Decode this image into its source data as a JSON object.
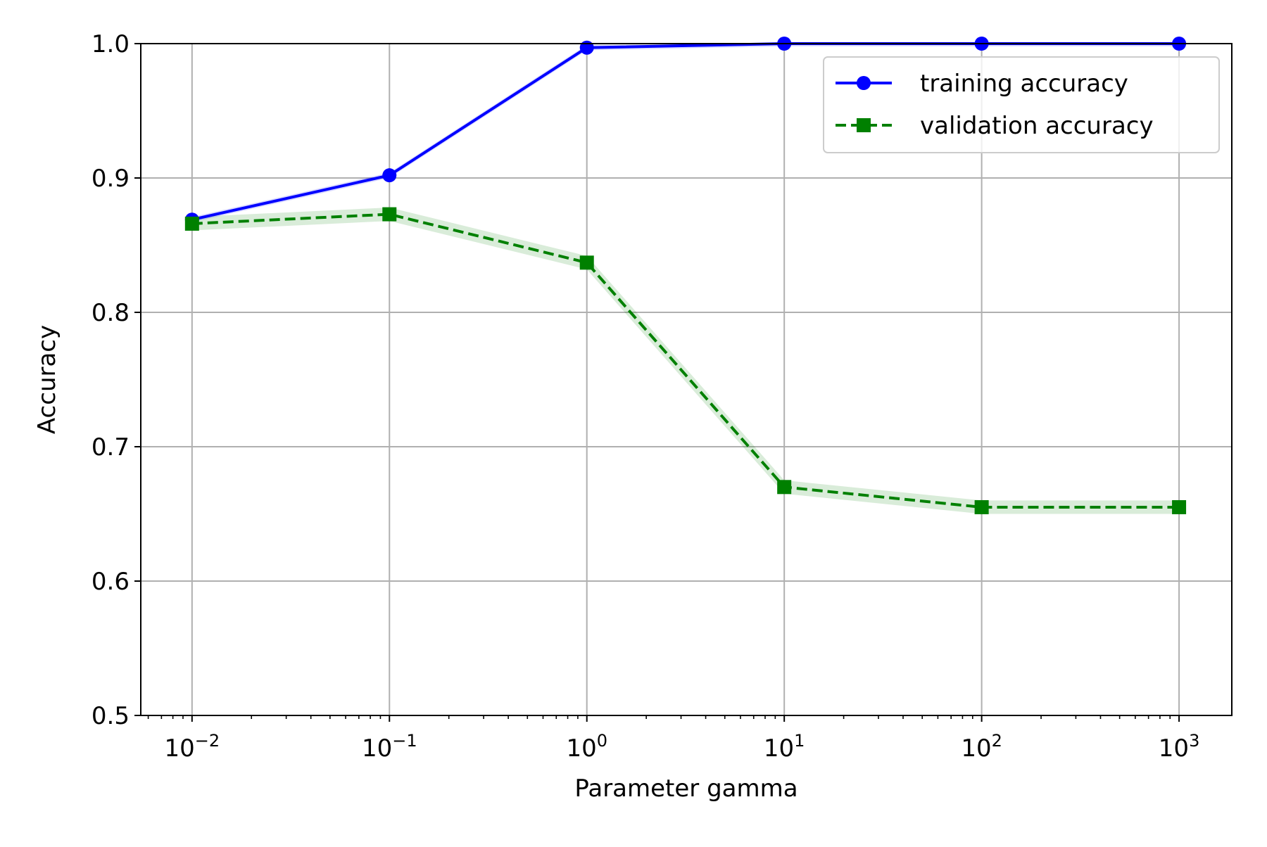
{
  "chart_data": {
    "type": "line",
    "xlabel": "Parameter gamma",
    "ylabel": "Accuracy",
    "x": [
      0.01,
      0.1,
      1,
      10,
      100,
      1000
    ],
    "x_scale": "log",
    "x_ticks": [
      {
        "value": 0.01,
        "base": "10",
        "exp": "−2"
      },
      {
        "value": 0.1,
        "base": "10",
        "exp": "−1"
      },
      {
        "value": 1,
        "base": "10",
        "exp": "0"
      },
      {
        "value": 10,
        "base": "10",
        "exp": "1"
      },
      {
        "value": 100,
        "base": "10",
        "exp": "2"
      },
      {
        "value": 1000,
        "base": "10",
        "exp": "3"
      }
    ],
    "ylim": [
      0.5,
      1.0
    ],
    "y_ticks": [
      "0.5",
      "0.6",
      "0.7",
      "0.8",
      "0.9",
      "1.0"
    ],
    "grid": true,
    "legend_position": "top-right",
    "series": [
      {
        "name": "training accuracy",
        "values": [
          0.869,
          0.902,
          0.997,
          1.0,
          1.0,
          1.0
        ],
        "band": 0.002,
        "color": "#0000ff",
        "marker": "circle",
        "linestyle": "solid"
      },
      {
        "name": "validation accuracy",
        "values": [
          0.866,
          0.873,
          0.837,
          0.67,
          0.655,
          0.655
        ],
        "band": 0.005,
        "color": "#008000",
        "marker": "square",
        "linestyle": "dashed"
      }
    ]
  }
}
